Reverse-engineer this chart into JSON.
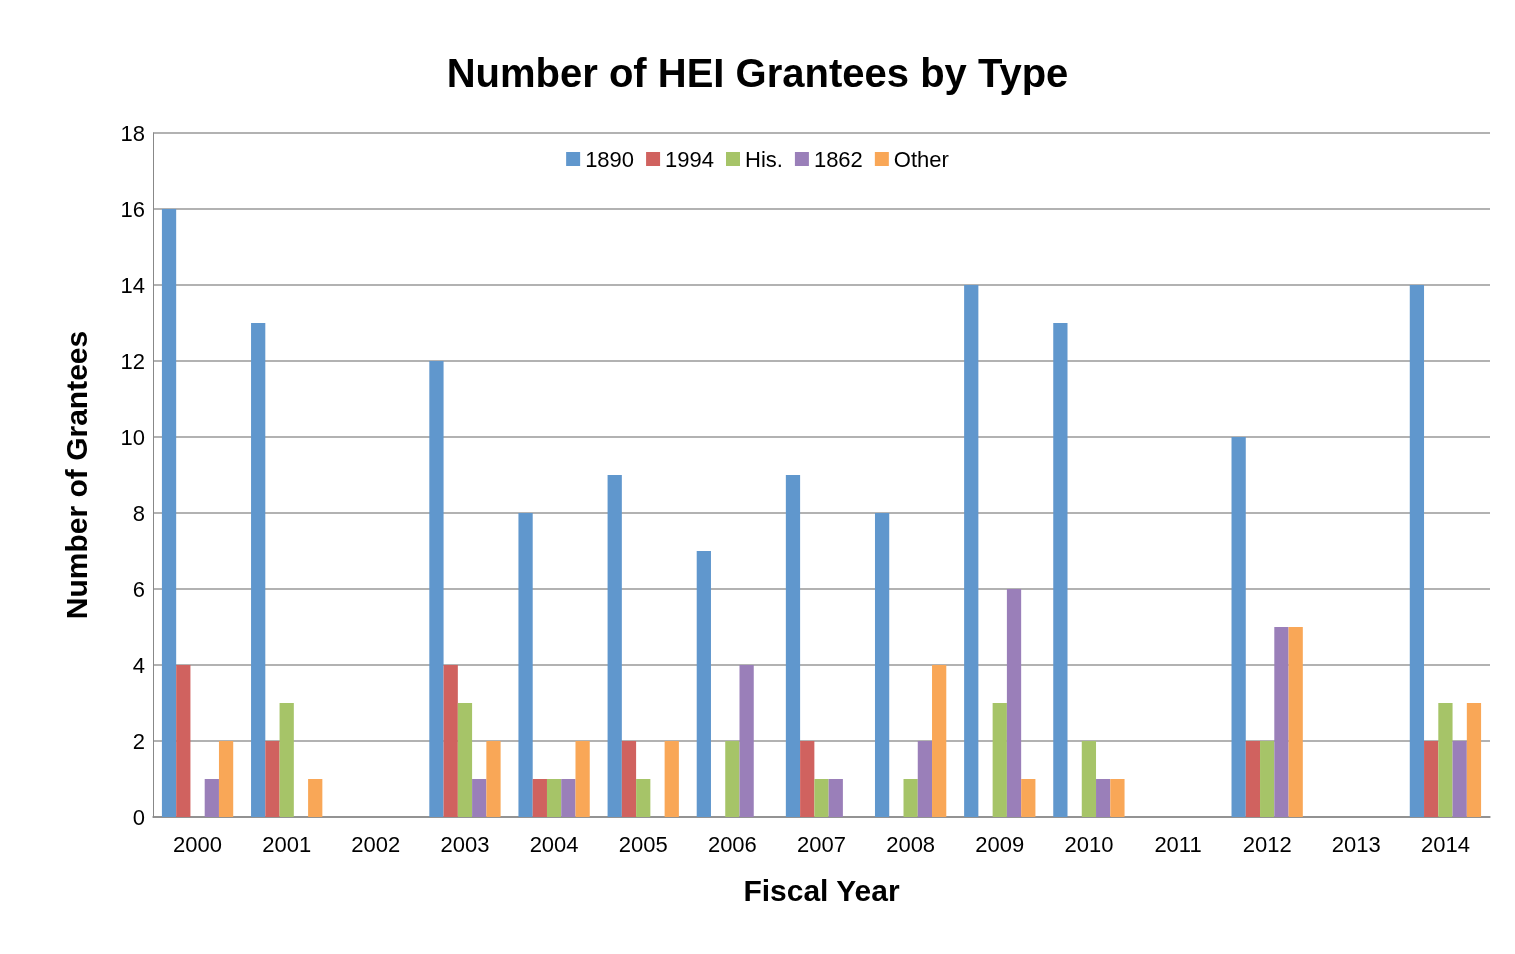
{
  "chart_data": {
    "type": "bar",
    "title": "Number of HEI Grantees by Type",
    "xlabel": "Fiscal Year",
    "ylabel": "Number of Grantees",
    "categories": [
      "2000",
      "2001",
      "2002",
      "2003",
      "2004",
      "2005",
      "2006",
      "2007",
      "2008",
      "2009",
      "2010",
      "2011",
      "2012",
      "2013",
      "2014"
    ],
    "series": [
      {
        "name": "1890",
        "color": "#6097cd",
        "values": [
          16,
          13,
          0,
          12,
          8,
          9,
          7,
          9,
          8,
          14,
          13,
          0,
          10,
          0,
          14
        ]
      },
      {
        "name": "1994",
        "color": "#d0625f",
        "values": [
          4,
          2,
          0,
          4,
          1,
          2,
          0,
          2,
          0,
          0,
          0,
          0,
          2,
          0,
          2
        ]
      },
      {
        "name": "His.",
        "color": "#a6c468",
        "values": [
          0,
          3,
          0,
          3,
          1,
          1,
          2,
          1,
          1,
          3,
          2,
          0,
          2,
          0,
          3
        ]
      },
      {
        "name": "1862",
        "color": "#9a7fb9",
        "values": [
          1,
          0,
          0,
          1,
          1,
          0,
          4,
          1,
          2,
          6,
          1,
          0,
          5,
          0,
          2
        ]
      },
      {
        "name": "Other",
        "color": "#f9a757",
        "values": [
          2,
          1,
          0,
          2,
          2,
          2,
          0,
          0,
          4,
          1,
          1,
          0,
          5,
          0,
          3
        ]
      }
    ],
    "ylim": [
      0,
      18
    ],
    "yticks": [
      0,
      2,
      4,
      6,
      8,
      10,
      12,
      14,
      16,
      18
    ],
    "grid": "y",
    "legend": "top"
  }
}
